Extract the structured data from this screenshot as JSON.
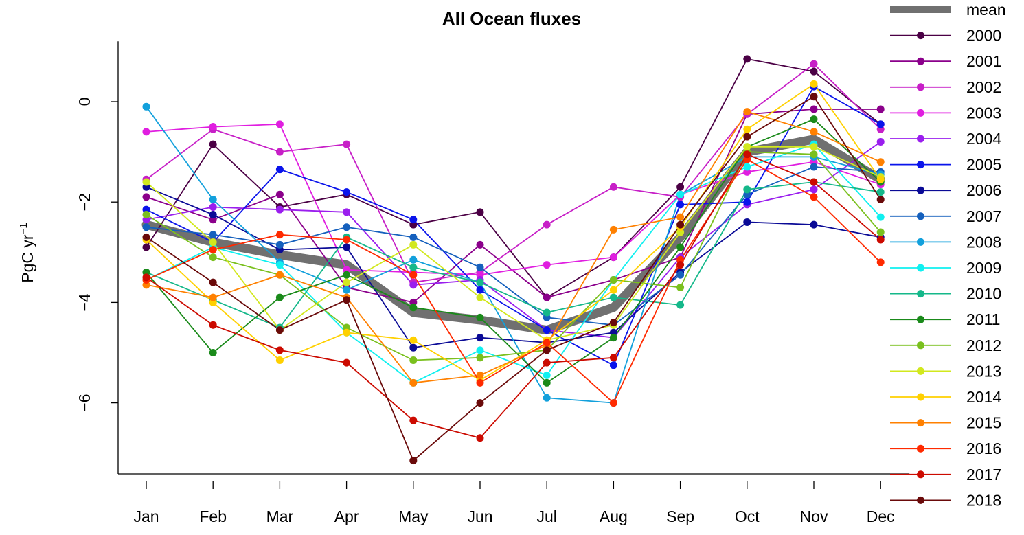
{
  "chart_data": {
    "type": "line",
    "title": "All Ocean fluxes",
    "ylabel": "PgC yr",
    "ylabel_superscript": "−1",
    "xlabel": "",
    "categories": [
      "Jan",
      "Feb",
      "Mar",
      "Apr",
      "May",
      "Jun",
      "Jul",
      "Aug",
      "Sep",
      "Oct",
      "Nov",
      "Dec"
    ],
    "ylim": [
      -7.4,
      1.2
    ],
    "yticks": [
      0,
      -2,
      -4,
      -6
    ],
    "ytick_labels": [
      "0",
      "−2",
      "−4",
      "−6"
    ],
    "grid": false,
    "legend_position": "right",
    "mean": {
      "name": "mean",
      "color": "#707070",
      "values": [
        -2.45,
        -2.8,
        -3.05,
        -3.25,
        -4.2,
        -4.35,
        -4.55,
        -4.1,
        -2.7,
        -1.0,
        -0.75,
        -1.55
      ]
    },
    "series": [
      {
        "name": "2000",
        "color": "#4B0045",
        "values": [
          -2.9,
          -0.85,
          -2.1,
          -1.85,
          -2.45,
          -2.2,
          -3.9,
          -3.1,
          -1.7,
          0.85,
          0.6,
          -0.45
        ]
      },
      {
        "name": "2001",
        "color": "#8B008B",
        "values": [
          -1.9,
          -2.35,
          -1.85,
          -3.7,
          -4.0,
          -2.85,
          -3.9,
          -3.55,
          -3.1,
          -0.25,
          -0.15,
          -0.15
        ]
      },
      {
        "name": "2002",
        "color": "#C71FC7",
        "values": [
          -1.55,
          -0.55,
          -1.0,
          -0.85,
          -3.6,
          -3.4,
          -2.45,
          -1.7,
          -1.9,
          -0.25,
          0.75,
          -0.55
        ]
      },
      {
        "name": "2003",
        "color": "#E01EE0",
        "values": [
          -0.6,
          -0.5,
          -0.45,
          -3.35,
          -3.4,
          -3.45,
          -3.25,
          -3.1,
          -1.85,
          -1.4,
          -1.2,
          -1.65
        ]
      },
      {
        "name": "2004",
        "color": "#9A1EEE",
        "values": [
          -2.35,
          -2.1,
          -2.15,
          -2.2,
          -3.65,
          -3.55,
          -4.55,
          -4.7,
          -3.1,
          -2.05,
          -1.75,
          -0.8
        ]
      },
      {
        "name": "2005",
        "color": "#0A14EB",
        "values": [
          -2.15,
          -2.8,
          -1.35,
          -1.8,
          -2.35,
          -3.75,
          -4.55,
          -5.25,
          -2.05,
          -2.0,
          0.3,
          -0.45
        ]
      },
      {
        "name": "2006",
        "color": "#0A0A96",
        "values": [
          -1.7,
          -2.25,
          -2.95,
          -2.9,
          -4.9,
          -4.7,
          -4.8,
          -4.6,
          -3.4,
          -2.4,
          -2.45,
          -2.7
        ]
      },
      {
        "name": "2007",
        "color": "#1560BD",
        "values": [
          -2.5,
          -2.65,
          -2.85,
          -2.5,
          -2.7,
          -3.3,
          -4.3,
          -4.45,
          -3.45,
          -1.85,
          -1.3,
          -1.4
        ]
      },
      {
        "name": "2008",
        "color": "#12A0DC",
        "values": [
          -0.1,
          -1.95,
          -3.2,
          -3.75,
          -3.15,
          -3.6,
          -5.9,
          -6.0,
          -1.85,
          -1.1,
          -1.1,
          -1.45
        ]
      },
      {
        "name": "2009",
        "color": "#0FF0F0",
        "values": [
          -3.55,
          -2.9,
          -3.25,
          -4.6,
          -5.6,
          -4.95,
          -5.45,
          -3.55,
          -1.85,
          -1.3,
          -0.85,
          -2.3
        ]
      },
      {
        "name": "2010",
        "color": "#15B88A",
        "values": [
          -3.4,
          -3.95,
          -4.5,
          -2.7,
          -3.3,
          -3.6,
          -4.2,
          -3.9,
          -4.05,
          -1.75,
          -1.6,
          -1.8
        ]
      },
      {
        "name": "2011",
        "color": "#1A8A1A",
        "values": [
          -3.4,
          -5.0,
          -3.9,
          -3.45,
          -4.1,
          -4.3,
          -5.6,
          -4.7,
          -2.9,
          -0.9,
          -0.35,
          -1.6
        ]
      },
      {
        "name": "2012",
        "color": "#7AC01E",
        "values": [
          -2.25,
          -3.1,
          -3.45,
          -4.5,
          -5.15,
          -5.1,
          -4.95,
          -3.55,
          -3.7,
          -1.0,
          -1.05,
          -2.6
        ]
      },
      {
        "name": "2013",
        "color": "#D2E81E",
        "values": [
          -1.6,
          -2.8,
          -4.55,
          -3.6,
          -2.85,
          -3.9,
          -4.75,
          -4.45,
          -2.6,
          -0.9,
          -0.9,
          -1.5
        ]
      },
      {
        "name": "2014",
        "color": "#FFD000",
        "values": [
          -2.75,
          -4.0,
          -5.15,
          -4.6,
          -4.75,
          -5.55,
          -4.75,
          -3.75,
          -2.5,
          -0.55,
          0.35,
          -1.55
        ]
      },
      {
        "name": "2015",
        "color": "#FF8000",
        "values": [
          -3.65,
          -3.9,
          -3.45,
          -3.9,
          -5.6,
          -5.45,
          -4.85,
          -2.55,
          -2.3,
          -0.2,
          -0.6,
          -1.2
        ]
      },
      {
        "name": "2016",
        "color": "#FF2A00",
        "values": [
          -3.55,
          -2.95,
          -2.65,
          -2.75,
          -3.45,
          -5.6,
          -4.8,
          -6.0,
          -3.15,
          -1.15,
          -1.9,
          -3.2
        ]
      },
      {
        "name": "2017",
        "color": "#CC0A00",
        "values": [
          -3.5,
          -4.45,
          -4.95,
          -5.2,
          -6.35,
          -6.7,
          -5.2,
          -5.1,
          -3.25,
          -1.05,
          -1.6,
          -2.75
        ]
      },
      {
        "name": "2018",
        "color": "#6A0A0A",
        "values": [
          -2.7,
          -3.6,
          -4.55,
          -3.95,
          -7.15,
          -6.0,
          -4.95,
          -4.4,
          -2.45,
          -0.7,
          0.1,
          -1.95
        ]
      }
    ]
  }
}
